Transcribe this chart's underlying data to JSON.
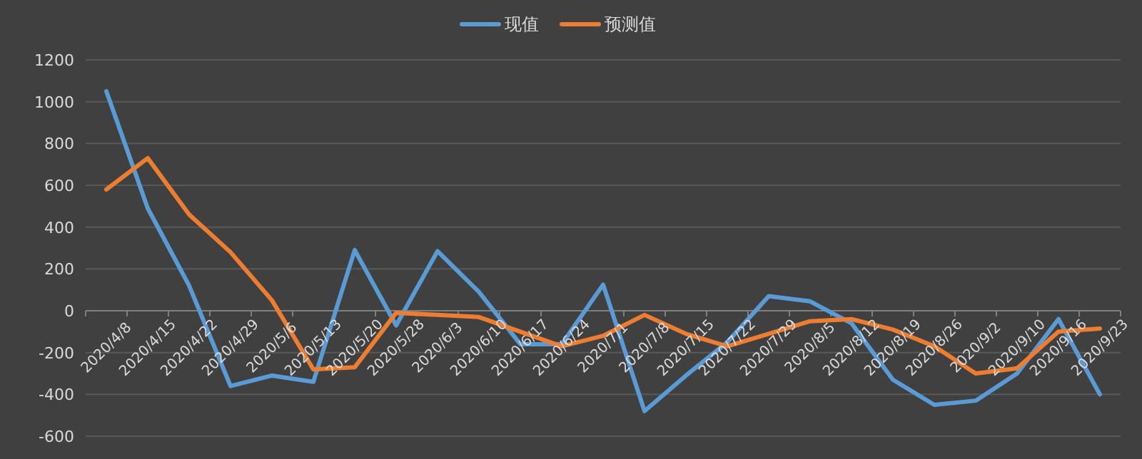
{
  "chart_data": {
    "type": "line",
    "categories": [
      "2020/4/8",
      "2020/4/15",
      "2020/4/22",
      "2020/4/29",
      "2020/5/6",
      "2020/5/13",
      "2020/5/20",
      "2020/5/28",
      "2020/6/3",
      "2020/6/10",
      "2020/6/17",
      "2020/6/24",
      "2020/7/1",
      "2020/7/8",
      "2020/7/15",
      "2020/7/22",
      "2020/7/29",
      "2020/8/5",
      "2020/8/12",
      "2020/8/19",
      "2020/8/26",
      "2020/9/2",
      "2020/9/10",
      "2020/9/16",
      "2020/9/23"
    ],
    "series": [
      {
        "name": "现值",
        "color": "#5b9bd5",
        "values": [
          1050,
          490,
          120,
          -360,
          -310,
          -340,
          290,
          -70,
          285,
          90,
          -160,
          -160,
          125,
          -480,
          -310,
          -150,
          70,
          45,
          -60,
          -330,
          -450,
          -430,
          -300,
          -40,
          -400
        ]
      },
      {
        "name": "预测值",
        "color": "#ed7d31",
        "values": [
          580,
          730,
          460,
          280,
          50,
          -280,
          -270,
          -10,
          -20,
          -30,
          -100,
          -170,
          -120,
          -20,
          -110,
          -170,
          -110,
          -50,
          -40,
          -90,
          -170,
          -300,
          -275,
          -100,
          -85
        ]
      }
    ],
    "ylim": [
      -600,
      1200
    ],
    "yticks": [
      -600,
      -400,
      -200,
      0,
      200,
      400,
      600,
      800,
      1000,
      1200
    ],
    "grid": "y",
    "legend": "top",
    "marker": "none",
    "line_style": "solid"
  }
}
